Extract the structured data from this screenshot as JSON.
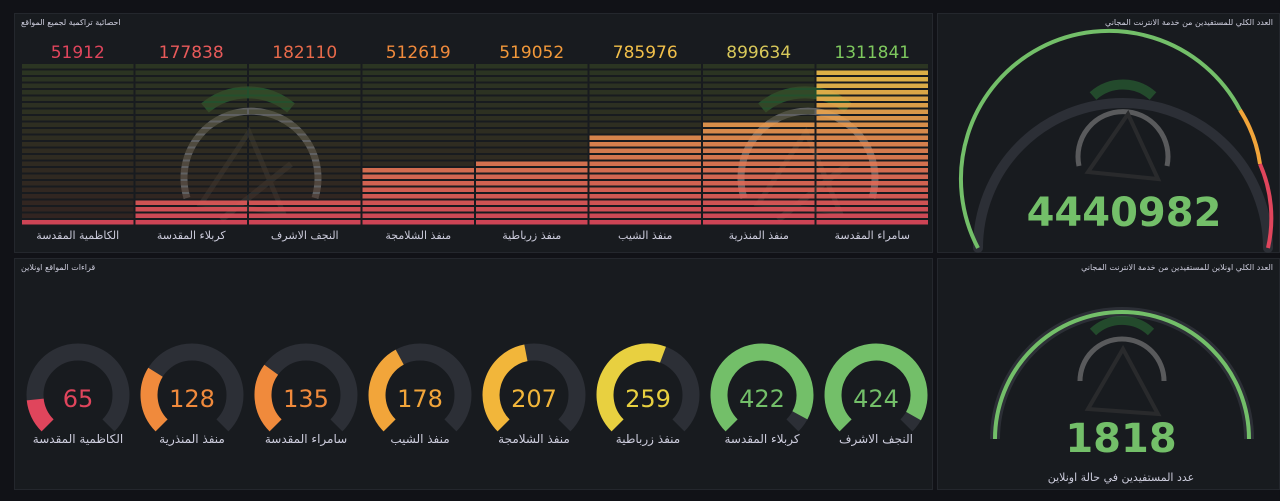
{
  "cumulative_panel": {
    "title": "احصائية تراكمية لجميع المواقع",
    "max": 1400000,
    "bars": [
      {
        "label": "الكاظمية المقدسة",
        "value": 51912,
        "color": "#e0455c"
      },
      {
        "label": "كربلاء المقدسة",
        "value": 177838,
        "color": "#e85a5a"
      },
      {
        "label": "النجف الاشرف",
        "value": 182110,
        "color": "#e86a4a"
      },
      {
        "label": "منفذ الشلامجة",
        "value": 512619,
        "color": "#f08a3c"
      },
      {
        "label": "منفذ زرباطية",
        "value": 519052,
        "color": "#f2993a"
      },
      {
        "label": "منفذ الشيب",
        "value": 785976,
        "color": "#f2c04a"
      },
      {
        "label": "منفذ المنذرية",
        "value": 899634,
        "color": "#d8c85a"
      },
      {
        "label": "سامراء المقدسة",
        "value": 1311841,
        "color": "#7ec85e"
      }
    ]
  },
  "online_panel": {
    "title": "قراءات المواقع اونلاين",
    "max": 450,
    "gauges": [
      {
        "label": "الكاظمية المقدسة",
        "value": 65,
        "color": "#e0455c"
      },
      {
        "label": "منفذ المنذرية",
        "value": 128,
        "color": "#f08a3c"
      },
      {
        "label": "سامراء المقدسة",
        "value": 135,
        "color": "#f08a3c"
      },
      {
        "label": "منفذ الشيب",
        "value": 178,
        "color": "#f2a53a"
      },
      {
        "label": "منفذ الشلامجة",
        "value": 207,
        "color": "#f2b63a"
      },
      {
        "label": "منفذ زرباطية",
        "value": 259,
        "color": "#e8d040"
      },
      {
        "label": "كربلاء المقدسة",
        "value": 422,
        "color": "#73bf69"
      },
      {
        "label": "النجف الاشرف",
        "value": 424,
        "color": "#73bf69"
      }
    ]
  },
  "total_panel": {
    "title": "العدد الكلي للمستفيدين من خدمة الانترنت المجاني",
    "value": "4440982",
    "color": "#73bf69"
  },
  "total_online_panel": {
    "title": "العدد الكلي اونلاين للمستفيدين من خدمة الانترنت المجاني",
    "value": "1818",
    "subtitle": "عدد المستفيدين في حالة اونلاين",
    "color": "#73bf69"
  }
}
